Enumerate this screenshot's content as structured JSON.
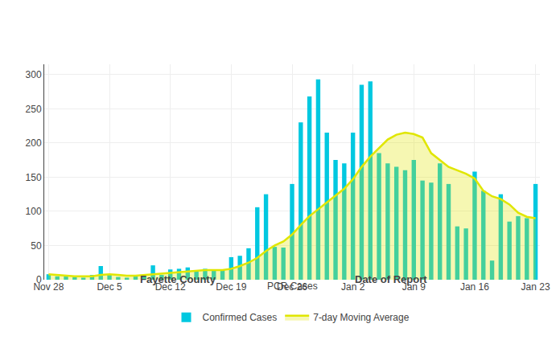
{
  "chart_data": {
    "type": "bar",
    "annotations": [
      "PCR Cases",
      "Fayette County",
      "Date of Report"
    ],
    "categories": [
      "Nov 28",
      null,
      null,
      null,
      null,
      null,
      null,
      "Dec 5",
      null,
      null,
      null,
      null,
      null,
      null,
      "Dec 12",
      null,
      null,
      null,
      null,
      null,
      null,
      "Dec 19",
      null,
      null,
      null,
      null,
      null,
      null,
      "Dec 26",
      null,
      null,
      null,
      null,
      null,
      null,
      "Jan 2",
      null,
      null,
      null,
      null,
      null,
      null,
      "Jan 9",
      null,
      null,
      null,
      null,
      null,
      null,
      "Jan 16",
      null,
      null,
      null,
      null,
      null,
      null,
      "Jan 23"
    ],
    "series": [
      {
        "name": "Confirmed Cases",
        "type": "bar",
        "color": "#00c8e0",
        "values": [
          8,
          5,
          6,
          4,
          3,
          7,
          20,
          8,
          4,
          3,
          5,
          6,
          21,
          7,
          15,
          16,
          18,
          14,
          16,
          15,
          14,
          33,
          35,
          46,
          106,
          125,
          48,
          47,
          140,
          230,
          268,
          293,
          215,
          175,
          170,
          215,
          285,
          290,
          185,
          170,
          165,
          160,
          175,
          145,
          142,
          170,
          140,
          78,
          75,
          158,
          130,
          28,
          125,
          85,
          93,
          90,
          140
        ]
      },
      {
        "name": "7-day Moving Average",
        "type": "line",
        "color": "#e0e600",
        "values": [
          8,
          7,
          6,
          5,
          5,
          5,
          7,
          8,
          7,
          6,
          6,
          7,
          8,
          9,
          10,
          11,
          12,
          13,
          14,
          14,
          14,
          16,
          20,
          25,
          32,
          42,
          50,
          56,
          66,
          80,
          93,
          103,
          113,
          122,
          133,
          147,
          165,
          180,
          193,
          205,
          212,
          215,
          213,
          208,
          185,
          175,
          165,
          160,
          155,
          148,
          130,
          122,
          118,
          110,
          98,
          92,
          90
        ]
      }
    ],
    "ylim": [
      0,
      315
    ],
    "yticks": [
      0,
      50,
      100,
      150,
      200,
      250,
      300
    ],
    "grid": true,
    "legend": "bottom"
  }
}
